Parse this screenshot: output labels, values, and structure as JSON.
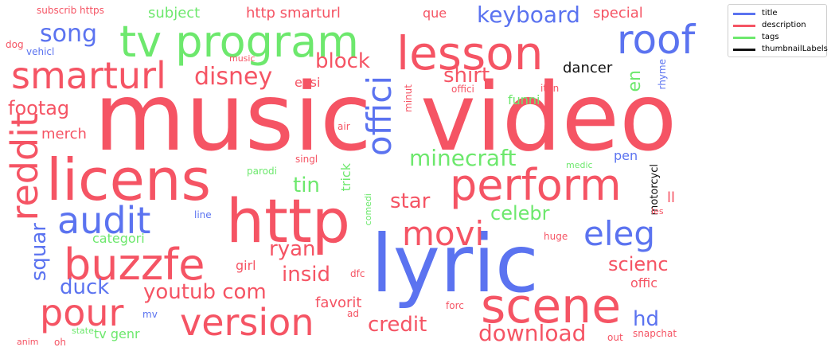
{
  "colors": {
    "title": "#5b73f0",
    "description": "#f55464",
    "tags": "#6de86d",
    "thumbnailLabels": "#111111"
  },
  "legend": [
    {
      "label": "title",
      "category": "title"
    },
    {
      "label": "description",
      "category": "description"
    },
    {
      "label": "tags",
      "category": "tags"
    },
    {
      "label": "thumbnailLabels",
      "category": "thumbnailLabels"
    }
  ],
  "words": [
    {
      "text": "music",
      "category": "description"
    },
    {
      "text": "video",
      "category": "description"
    },
    {
      "text": "lyric",
      "category": "title"
    },
    {
      "text": "licens",
      "category": "description"
    },
    {
      "text": "http",
      "category": "description"
    },
    {
      "text": "scene",
      "category": "description"
    },
    {
      "text": "buzzfe",
      "category": "description"
    },
    {
      "text": "perform",
      "category": "description"
    },
    {
      "text": "tv program",
      "category": "tags"
    },
    {
      "text": "lesson",
      "category": "description"
    },
    {
      "text": "roof",
      "category": "title"
    },
    {
      "text": "smarturl",
      "category": "description"
    },
    {
      "text": "reddit",
      "category": "description"
    },
    {
      "text": "offici",
      "category": "title"
    },
    {
      "text": "version",
      "category": "description"
    },
    {
      "text": "audit",
      "category": "title"
    },
    {
      "text": "pour",
      "category": "description"
    },
    {
      "text": "movi",
      "category": "description"
    },
    {
      "text": "eleg",
      "category": "title"
    },
    {
      "text": "keyboard",
      "category": "title"
    },
    {
      "text": "disney",
      "category": "description"
    },
    {
      "text": "song",
      "category": "title"
    },
    {
      "text": "footag",
      "category": "description"
    },
    {
      "text": "block",
      "category": "description"
    },
    {
      "text": "shirt",
      "category": "description"
    },
    {
      "text": "minecraft",
      "category": "tags"
    },
    {
      "text": "download",
      "category": "description"
    },
    {
      "text": "credit",
      "category": "description"
    },
    {
      "text": "youtub com",
      "category": "description"
    },
    {
      "text": "scienc",
      "category": "description"
    },
    {
      "text": "insid",
      "category": "description"
    },
    {
      "text": "duck",
      "category": "title"
    },
    {
      "text": "ryan",
      "category": "description"
    },
    {
      "text": "star",
      "category": "description"
    },
    {
      "text": "celebr",
      "category": "tags"
    },
    {
      "text": "squar",
      "category": "title"
    },
    {
      "text": "tin",
      "category": "tags"
    },
    {
      "text": "hd",
      "category": "title"
    },
    {
      "text": "en",
      "category": "tags"
    },
    {
      "text": "dancer",
      "category": "thumbnailLabels"
    },
    {
      "text": "special",
      "category": "description"
    },
    {
      "text": "subject",
      "category": "tags"
    },
    {
      "text": "http smarturl",
      "category": "description"
    },
    {
      "text": "que",
      "category": "description"
    },
    {
      "text": "merch",
      "category": "description"
    },
    {
      "text": "categori",
      "category": "tags"
    },
    {
      "text": "favorit",
      "category": "description"
    },
    {
      "text": "tv genr",
      "category": "tags"
    },
    {
      "text": "offic",
      "category": "description"
    },
    {
      "text": "funni",
      "category": "tags"
    },
    {
      "text": "easi",
      "category": "description"
    },
    {
      "text": "trick",
      "category": "tags"
    },
    {
      "text": "pen",
      "category": "title"
    },
    {
      "text": "ll",
      "category": "description"
    },
    {
      "text": "girl",
      "category": "description"
    },
    {
      "text": "subscrib https",
      "category": "description"
    },
    {
      "text": "dog",
      "category": "description"
    },
    {
      "text": "vehicl",
      "category": "title"
    },
    {
      "text": "music",
      "category": "description"
    },
    {
      "text": "air",
      "category": "description"
    },
    {
      "text": "minut",
      "category": "description"
    },
    {
      "text": "offici",
      "category": "description"
    },
    {
      "text": "itun",
      "category": "description"
    },
    {
      "text": "rhyme",
      "category": "title"
    },
    {
      "text": "singl",
      "category": "description"
    },
    {
      "text": "parodi",
      "category": "tags"
    },
    {
      "text": "medic",
      "category": "tags"
    },
    {
      "text": "motorcycl",
      "category": "thumbnailLabels"
    },
    {
      "text": "les",
      "category": "description"
    },
    {
      "text": "line",
      "category": "title"
    },
    {
      "text": "comedi",
      "category": "tags"
    },
    {
      "text": "huge",
      "category": "description"
    },
    {
      "text": "dfc",
      "category": "description"
    },
    {
      "text": "forc",
      "category": "description"
    },
    {
      "text": "ad",
      "category": "description"
    },
    {
      "text": "mv",
      "category": "title"
    },
    {
      "text": "state",
      "category": "tags"
    },
    {
      "text": "anim",
      "category": "description"
    },
    {
      "text": "oh",
      "category": "description"
    },
    {
      "text": "snapchat",
      "category": "description"
    },
    {
      "text": "out",
      "category": "description"
    }
  ]
}
